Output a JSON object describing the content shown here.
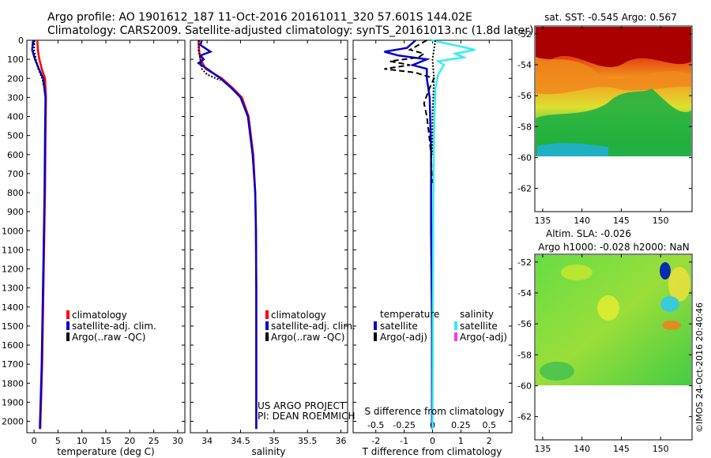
{
  "header": {
    "line1": "Argo profile: AO 1901612_187 11-Oct-2016 20161011_320 57.601S 144.02E",
    "line2": "Climatology: CARS2009. Satellite-adjusted climatology: synTS_20161013.nc (1.8d later)"
  },
  "colors": {
    "red": "#ff0000",
    "blue": "#0000cc",
    "black": "#000000",
    "cyan": "#33eeee",
    "magenta": "#ff33ff"
  },
  "chart_data": [
    {
      "type": "line",
      "xlabel": "temperature (deg C)",
      "xlim": [
        -1.5,
        31.5
      ],
      "xticks": [
        0,
        5,
        10,
        15,
        20,
        25,
        30
      ],
      "ylim": [
        2060,
        0
      ],
      "yticks": [
        0,
        100,
        200,
        300,
        400,
        500,
        600,
        700,
        800,
        900,
        1000,
        1100,
        1200,
        1300,
        1400,
        1500,
        1600,
        1700,
        1800,
        1900,
        2000
      ],
      "legend": [
        "climatology",
        "satellite-adj. clim.",
        "Argo(..raw -QC)"
      ],
      "series": [
        {
          "name": "climatology",
          "color": "#ff0000",
          "style": "solid",
          "x": [
            0.7,
            0.8,
            1.1,
            1.6,
            2.3,
            2.5,
            2.4,
            2.3,
            2.1,
            1.9,
            1.7,
            1.3
          ],
          "y": [
            0,
            50,
            100,
            150,
            200,
            300,
            500,
            800,
            1100,
            1400,
            1700,
            2040
          ]
        },
        {
          "name": "satellite-adj. clim.",
          "color": "#0000cc",
          "style": "solid",
          "x": [
            -0.2,
            -0.4,
            0.2,
            1.0,
            1.9,
            2.4,
            2.3,
            2.2,
            2.0,
            1.8,
            1.6,
            1.2
          ],
          "y": [
            0,
            50,
            100,
            150,
            200,
            300,
            500,
            800,
            1100,
            1400,
            1700,
            2040
          ]
        },
        {
          "name": "Argo(..raw -QC)",
          "color": "#000000",
          "style": "dotted",
          "x": [
            0.1,
            0.0,
            0.4,
            0.9,
            1.7,
            2.0
          ],
          "y": [
            0,
            50,
            100,
            150,
            200,
            240
          ]
        }
      ]
    },
    {
      "type": "line",
      "xlabel": "salinity",
      "xlim": [
        33.75,
        36.1
      ],
      "xticks": [
        34,
        34.5,
        35,
        35.5,
        36
      ],
      "ylim": [
        2060,
        0
      ],
      "legend": [
        "climatology",
        "satellite-adj. clim.",
        "Argo(..raw -QC)"
      ],
      "annotation": [
        "US ARGO PROJECT",
        "PI: DEAN ROEMMICH"
      ],
      "series": [
        {
          "name": "climatology",
          "color": "#ff0000",
          "style": "solid",
          "x": [
            33.87,
            33.88,
            33.9,
            33.98,
            34.22,
            34.38,
            34.52,
            34.62,
            34.69,
            34.72,
            34.73,
            34.735,
            34.735,
            34.735
          ],
          "y": [
            0,
            50,
            100,
            150,
            200,
            250,
            300,
            400,
            600,
            800,
            1000,
            1300,
            1700,
            2040
          ]
        },
        {
          "name": "satellite-adj. clim.",
          "color": "#0000cc",
          "style": "solid",
          "x": [
            33.92,
            33.9,
            34.05,
            33.9,
            33.95,
            33.87,
            34.0,
            34.2,
            34.36,
            34.5,
            34.61,
            34.68,
            34.72,
            34.73,
            34.735,
            34.735,
            34.735
          ],
          "y": [
            0,
            25,
            60,
            80,
            100,
            120,
            150,
            200,
            250,
            300,
            400,
            600,
            800,
            1000,
            1300,
            1700,
            2040
          ]
        },
        {
          "name": "Argo(..raw -QC)",
          "color": "#000000",
          "style": "dotted",
          "x": [
            33.88,
            33.87,
            33.9,
            33.92,
            34.0,
            34.2
          ],
          "y": [
            0,
            50,
            100,
            150,
            180,
            210
          ]
        }
      ]
    },
    {
      "type": "line",
      "xlabel": "T difference from climatology",
      "xlabel_top": "S difference from climatology",
      "xlim": [
        -2.8,
        2.8
      ],
      "xticks": [
        -2,
        -1,
        0,
        1,
        2
      ],
      "xticks_top": [
        -0.5,
        -0.25,
        0,
        0.25,
        0.5
      ],
      "ylim": [
        2060,
        0
      ],
      "legend_title_left": "temperature",
      "legend_title_right": "salinity",
      "legend_left": [
        "satellite",
        "Argo(-adj)"
      ],
      "legend_right": [
        "satellite",
        "Argo(-adj)"
      ],
      "series": [
        {
          "name": "satellite",
          "group": "temperature",
          "color": "#0000cc",
          "style": "solid",
          "x": [
            -0.6,
            -0.9,
            -1.7,
            -1.2,
            -0.2,
            -0.7,
            -0.2,
            -0.2,
            -0.1,
            -0.05,
            -0.05,
            -0.02,
            -0.02
          ],
          "y": [
            0,
            40,
            60,
            80,
            100,
            130,
            150,
            200,
            300,
            600,
            1000,
            1500,
            2040
          ]
        },
        {
          "name": "satellite",
          "group": "salinity",
          "color": "#33eeee",
          "style": "solid",
          "x": [
            -0.04,
            0.9,
            1.5,
            0.8,
            1.1,
            0.2,
            0.4,
            0.2,
            0.1,
            0.05,
            0.02,
            0.0
          ],
          "y": [
            0,
            30,
            50,
            70,
            90,
            110,
            130,
            180,
            250,
            500,
            1000,
            2040
          ]
        },
        {
          "name": "Argo(-adj)",
          "group": "temperature",
          "color": "#000000",
          "style": "dashed",
          "x": [
            -0.2,
            -0.8,
            -0.3,
            -0.5,
            -1.5,
            -0.8,
            -1.7,
            -0.6,
            0.05,
            -0.1,
            -0.3,
            -0.2,
            -0.12,
            -0.05,
            -0.02
          ],
          "y": [
            0,
            50,
            70,
            90,
            110,
            130,
            150,
            170,
            200,
            250,
            330,
            400,
            500,
            600,
            750
          ]
        },
        {
          "name": "Argo(-adj)",
          "group": "salinity",
          "color": "#000000",
          "style": "dotted",
          "x": [
            0.1,
            0.0,
            0.05,
            0.0,
            -0.02
          ],
          "y": [
            0,
            100,
            200,
            400,
            600
          ]
        }
      ]
    },
    {
      "type": "heatmap",
      "title": "sat. SST: -0.545 Argo: 0.567",
      "xlim": [
        134,
        154
      ],
      "ylim": [
        -63.5,
        -51.5
      ],
      "xticks": [
        135,
        140,
        145,
        150
      ],
      "yticks": [
        -52,
        -54,
        -56,
        -58,
        -60,
        -62
      ],
      "data_extent_y": [
        -60,
        -51.5
      ]
    },
    {
      "type": "heatmap",
      "title": "Altim. SLA: -0.026",
      "subtitle": "Argo h1000: -0.028 h2000: NaN",
      "xlim": [
        134,
        154
      ],
      "ylim": [
        -63.5,
        -51.5
      ],
      "xticks": [
        135,
        140,
        145,
        150
      ],
      "yticks": [
        -52,
        -54,
        -56,
        -58,
        -60,
        -62
      ],
      "data_extent_y": [
        -60,
        -51.5
      ]
    }
  ],
  "footer_stamp": "©IMOS 24-Oct-2016 20:40:46"
}
